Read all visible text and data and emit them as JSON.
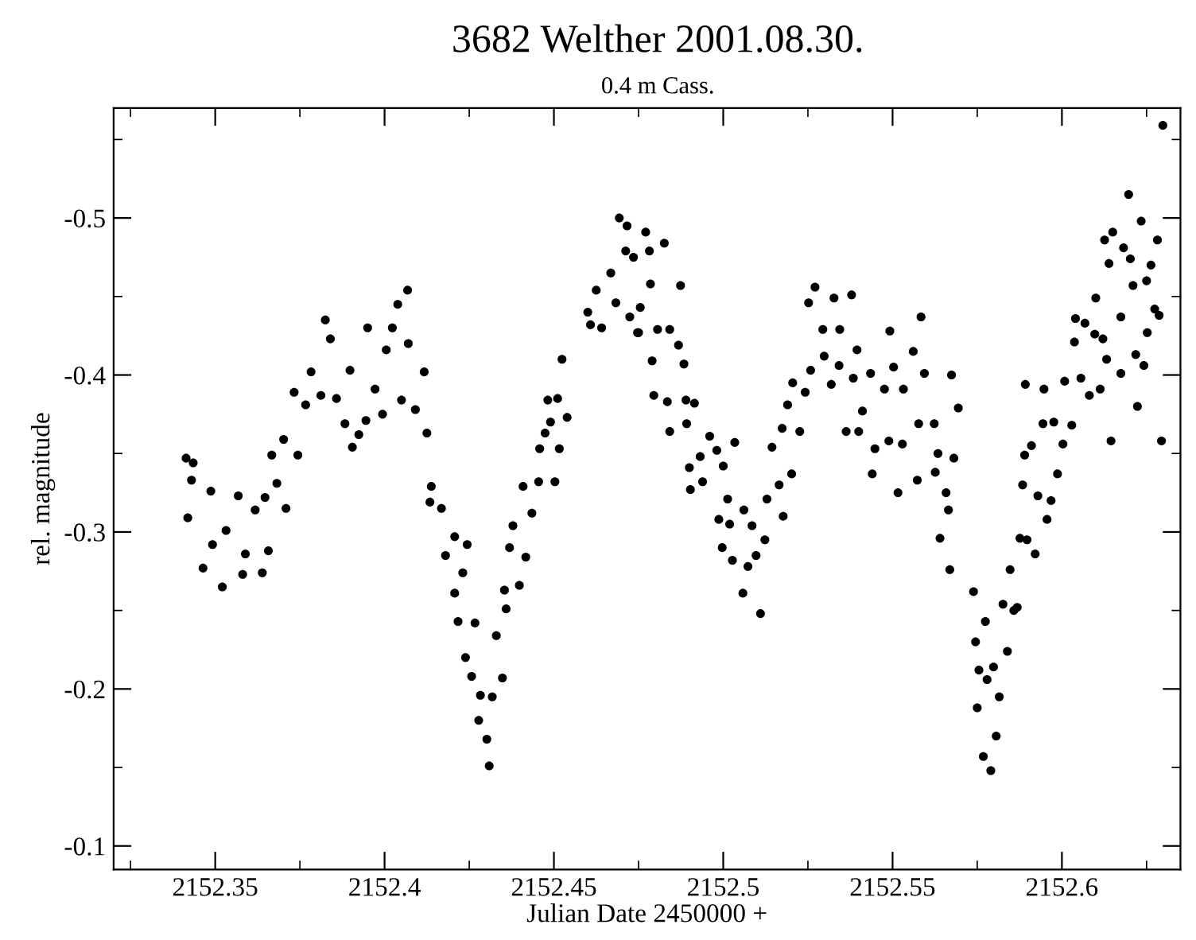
{
  "chart_data": {
    "type": "scatter",
    "title": "3682 Welther 2001.08.30.",
    "subtitle": "0.4 m Cass.",
    "xlabel": "Julian Date 2450000 +",
    "ylabel": "rel. magnitude",
    "xlim": [
      2152.32,
      2152.635
    ],
    "ylim": [
      -0.085,
      -0.57
    ],
    "xticks": [
      2152.35,
      2152.4,
      2152.45,
      2152.5,
      2152.55,
      2152.6
    ],
    "yticks": [
      -0.1,
      -0.2,
      -0.3,
      -0.4,
      -0.5
    ],
    "marker": "circle",
    "grid": false,
    "series": [
      {
        "color": "#000000",
        "x": [
          2152.3414,
          2152.3435,
          2152.343,
          2152.3419,
          2152.3464,
          2152.3487,
          2152.3492,
          2152.3521,
          2152.3532,
          2152.3568,
          2152.3589,
          2152.3581,
          2152.3618,
          2152.3639,
          2152.3647,
          2152.3657,
          2152.3667,
          2152.3682,
          2152.3709,
          2152.3702,
          2152.3733,
          2152.3744,
          2152.3767,
          2152.3783,
          2152.3812,
          2152.3825,
          2152.384,
          2152.3858,
          2152.3883,
          2152.3898,
          2152.3905,
          2152.3924,
          2152.395,
          2152.3945,
          2152.3972,
          2152.3994,
          2152.4005,
          2152.4023,
          2152.4039,
          2152.405,
          2152.4068,
          2152.407,
          2152.4091,
          2152.4117,
          2152.4125,
          2152.4138,
          2152.4134,
          2152.4168,
          2152.418,
          2152.4207,
          2152.4244,
          2152.4207,
          2152.4231,
          2152.4217,
          2152.4267,
          2152.4239,
          2152.4257,
          2152.4283,
          2152.4278,
          2152.4302,
          2152.4309,
          2152.4318,
          2152.433,
          2152.4348,
          2152.4354,
          2152.4359,
          2152.4369,
          2152.4398,
          2152.4417,
          2152.4379,
          2152.4409,
          2152.4435,
          2152.4455,
          2152.4458,
          2152.4474,
          2152.449,
          2152.4503,
          2152.4516,
          2152.4482,
          2152.4511,
          2152.4539,
          2152.4524,
          2152.46,
          2152.4608,
          2152.4641,
          2152.4625,
          2152.4668,
          2152.4693,
          2152.4716,
          2152.4712,
          2152.4683,
          2152.4735,
          2152.4724,
          2152.4747,
          2152.4771,
          2152.4782,
          2152.4755,
          2152.475,
          2152.4826,
          2152.4785,
          2152.4806,
          2152.479,
          2152.4842,
          2152.4868,
          2152.4795,
          2152.4835,
          2152.4874,
          2152.4884,
          2152.489,
          2152.4842,
          2152.4892,
          2152.4915,
          2152.49,
          2152.4903,
          2152.4932,
          2152.4939,
          2152.496,
          2152.4981,
          2152.5,
          2152.4987,
          2152.4997,
          2152.5013,
          2152.5019,
          2152.5034,
          2152.5027,
          2152.5061,
          2152.5058,
          2152.5073,
          2152.5085,
          2152.511,
          2152.5097,
          2152.5123,
          2152.5129,
          2152.5144,
          2152.5165,
          2152.5177,
          2152.5202,
          2152.5174,
          2152.519,
          2152.5205,
          2152.5226,
          2152.5242,
          2152.5252,
          2152.5258,
          2152.5271,
          2152.5294,
          2152.5319,
          2152.5327,
          2152.5298,
          2152.5344,
          2152.5342,
          2152.5363,
          2152.5379,
          2152.5395,
          2152.5384,
          2152.54,
          2152.5411,
          2152.5435,
          2152.544,
          2152.5448,
          2152.5476,
          2152.5492,
          2152.5489,
          2152.5503,
          2152.5516,
          2152.5532,
          2152.5529,
          2152.5561,
          2152.5577,
          2152.5584,
          2152.5594,
          2152.5573,
          2152.5623,
          2152.5634,
          2152.5626,
          2152.5658,
          2152.5665,
          2152.5674,
          2152.5681,
          2152.5694,
          2152.564,
          2152.5669,
          2152.5739,
          2152.5745,
          2152.5755,
          2152.575,
          2152.5774,
          2152.5779,
          2152.5768,
          2152.579,
          2152.5798,
          2152.5806,
          2152.5815,
          2152.5826,
          2152.5839,
          2152.5847,
          2152.5858,
          2152.5868,
          2152.5876,
          2152.5884,
          2152.5892,
          2152.589,
          2152.5897,
          2152.591,
          2152.5921,
          2152.5929,
          2152.5947,
          2152.5944,
          2152.5956,
          2152.5968,
          2152.5976,
          2152.5987,
          2152.6008,
          2152.6003,
          2152.6029,
          2152.604,
          2152.6037,
          2152.6056,
          2152.6068,
          2152.6081,
          2152.61,
          2152.6097,
          2152.6113,
          2152.6121,
          2152.6126,
          2152.6139,
          2152.6145,
          2152.6132,
          2152.615,
          2152.6174,
          2152.6174,
          2152.6182,
          2152.6197,
          2152.6202,
          2152.621,
          2152.6223,
          2152.6218,
          2152.6234,
          2152.6242,
          2152.625,
          2152.6263,
          2152.6252,
          2152.6282,
          2152.6274,
          2152.6287,
          2152.6294,
          2152.6298
        ],
        "values": [
          -0.347,
          -0.344,
          -0.333,
          -0.309,
          -0.277,
          -0.326,
          -0.292,
          -0.265,
          -0.301,
          -0.323,
          -0.286,
          -0.273,
          -0.314,
          -0.274,
          -0.322,
          -0.288,
          -0.349,
          -0.331,
          -0.315,
          -0.359,
          -0.389,
          -0.349,
          -0.381,
          -0.402,
          -0.387,
          -0.435,
          -0.423,
          -0.385,
          -0.369,
          -0.403,
          -0.354,
          -0.362,
          -0.43,
          -0.371,
          -0.391,
          -0.375,
          -0.416,
          -0.43,
          -0.445,
          -0.384,
          -0.454,
          -0.42,
          -0.378,
          -0.402,
          -0.363,
          -0.329,
          -0.319,
          -0.315,
          -0.285,
          -0.297,
          -0.292,
          -0.261,
          -0.274,
          -0.243,
          -0.242,
          -0.22,
          -0.208,
          -0.196,
          -0.18,
          -0.168,
          -0.151,
          -0.195,
          -0.234,
          -0.207,
          -0.263,
          -0.251,
          -0.29,
          -0.266,
          -0.284,
          -0.304,
          -0.329,
          -0.312,
          -0.332,
          -0.353,
          -0.363,
          -0.37,
          -0.332,
          -0.353,
          -0.384,
          -0.385,
          -0.373,
          -0.41,
          -0.44,
          -0.432,
          -0.43,
          -0.454,
          -0.465,
          -0.5,
          -0.495,
          -0.479,
          -0.446,
          -0.475,
          -0.437,
          -0.427,
          -0.491,
          -0.479,
          -0.443,
          -0.427,
          -0.484,
          -0.458,
          -0.429,
          -0.409,
          -0.429,
          -0.419,
          -0.387,
          -0.383,
          -0.457,
          -0.407,
          -0.384,
          -0.364,
          -0.369,
          -0.382,
          -0.341,
          -0.327,
          -0.348,
          -0.332,
          -0.361,
          -0.352,
          -0.342,
          -0.308,
          -0.29,
          -0.321,
          -0.305,
          -0.357,
          -0.282,
          -0.314,
          -0.261,
          -0.278,
          -0.304,
          -0.248,
          -0.285,
          -0.295,
          -0.321,
          -0.354,
          -0.33,
          -0.31,
          -0.337,
          -0.366,
          -0.381,
          -0.395,
          -0.364,
          -0.389,
          -0.446,
          -0.403,
          -0.456,
          -0.429,
          -0.394,
          -0.449,
          -0.412,
          -0.429,
          -0.406,
          -0.364,
          -0.451,
          -0.416,
          -0.398,
          -0.364,
          -0.377,
          -0.401,
          -0.337,
          -0.353,
          -0.391,
          -0.428,
          -0.358,
          -0.405,
          -0.325,
          -0.391,
          -0.356,
          -0.415,
          -0.369,
          -0.437,
          -0.401,
          -0.333,
          -0.369,
          -0.35,
          -0.338,
          -0.325,
          -0.314,
          -0.4,
          -0.347,
          -0.379,
          -0.296,
          -0.276,
          -0.262,
          -0.23,
          -0.212,
          -0.188,
          -0.243,
          -0.206,
          -0.157,
          -0.148,
          -0.214,
          -0.17,
          -0.195,
          -0.254,
          -0.224,
          -0.276,
          -0.25,
          -0.252,
          -0.296,
          -0.33,
          -0.394,
          -0.349,
          -0.295,
          -0.355,
          -0.286,
          -0.323,
          -0.391,
          -0.369,
          -0.308,
          -0.32,
          -0.37,
          -0.337,
          -0.396,
          -0.356,
          -0.368,
          -0.436,
          -0.421,
          -0.398,
          -0.433,
          -0.387,
          -0.449,
          -0.426,
          -0.391,
          -0.423,
          -0.486,
          -0.471,
          -0.358,
          -0.41,
          -0.491,
          -0.401,
          -0.437,
          -0.481,
          -0.515,
          -0.474,
          -0.457,
          -0.38,
          -0.413,
          -0.498,
          -0.406,
          -0.46,
          -0.47,
          -0.427,
          -0.486,
          -0.442,
          -0.438,
          -0.358,
          -0.559
        ]
      }
    ]
  }
}
